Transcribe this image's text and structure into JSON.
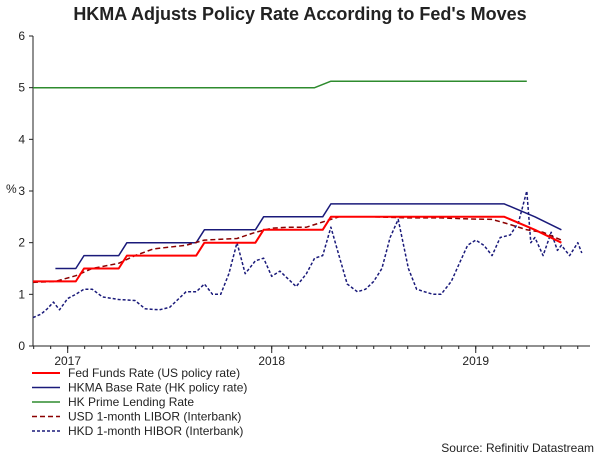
{
  "chart_data": {
    "type": "line",
    "title": "HKMA Adjusts Policy Rate According to Fed's Moves",
    "ylabel": "%",
    "xlabel": "",
    "ylim": [
      0,
      6
    ],
    "xlim": [
      2016.83,
      2019.56
    ],
    "y_ticks": [
      0,
      1,
      2,
      3,
      4,
      5,
      6
    ],
    "x_ticks": [
      {
        "label": "2017",
        "x": 2017.0
      },
      {
        "label": "2018",
        "x": 2018.0
      },
      {
        "label": "2019",
        "x": 2019.0
      }
    ],
    "grid": false,
    "legend_position": "bottom-left",
    "series": [
      {
        "name": "Fed Funds Rate (US policy rate)",
        "color": "#ff0000",
        "style": "solid",
        "width": 2,
        "points": [
          [
            2016.83,
            1.25
          ],
          [
            2017.04,
            1.25
          ],
          [
            2017.08,
            1.5
          ],
          [
            2017.25,
            1.5
          ],
          [
            2017.29,
            1.75
          ],
          [
            2017.63,
            1.75
          ],
          [
            2017.67,
            2.0
          ],
          [
            2017.92,
            2.0
          ],
          [
            2017.96,
            2.25
          ],
          [
            2018.25,
            2.25
          ],
          [
            2018.29,
            2.5
          ],
          [
            2018.81,
            2.5
          ],
          [
            2018.96,
            2.5
          ],
          [
            2019.14,
            2.5
          ],
          [
            2019.29,
            2.25
          ],
          [
            2019.42,
            2.0
          ]
        ]
      },
      {
        "name": "HKMA Base Rate (HK policy rate)",
        "color": "#1a1a7a",
        "style": "solid",
        "width": 1.5,
        "points": [
          [
            2016.94,
            1.5
          ],
          [
            2017.04,
            1.5
          ],
          [
            2017.08,
            1.75
          ],
          [
            2017.25,
            1.75
          ],
          [
            2017.29,
            2.0
          ],
          [
            2017.63,
            2.0
          ],
          [
            2017.67,
            2.25
          ],
          [
            2017.92,
            2.25
          ],
          [
            2017.96,
            2.5
          ],
          [
            2018.25,
            2.5
          ],
          [
            2018.29,
            2.75
          ],
          [
            2018.81,
            2.75
          ],
          [
            2018.96,
            2.75
          ],
          [
            2019.14,
            2.75
          ],
          [
            2019.29,
            2.5
          ],
          [
            2019.42,
            2.25
          ]
        ]
      },
      {
        "name": "HK Prime Lending Rate",
        "color": "#2e8b2e",
        "style": "solid",
        "width": 1.5,
        "points": [
          [
            2016.83,
            5.0
          ],
          [
            2018.21,
            5.0
          ],
          [
            2018.29,
            5.125
          ],
          [
            2019.25,
            5.125
          ]
        ]
      },
      {
        "name": "USD 1-month LIBOR (Interbank)",
        "color": "#8b0000",
        "style": "dashed",
        "width": 1.5,
        "points": [
          [
            2016.83,
            1.23
          ],
          [
            2016.94,
            1.25
          ],
          [
            2017.04,
            1.36
          ],
          [
            2017.12,
            1.5
          ],
          [
            2017.25,
            1.6
          ],
          [
            2017.33,
            1.75
          ],
          [
            2017.42,
            1.88
          ],
          [
            2017.58,
            1.95
          ],
          [
            2017.67,
            2.05
          ],
          [
            2017.83,
            2.08
          ],
          [
            2017.92,
            2.2
          ],
          [
            2018.0,
            2.28
          ],
          [
            2018.08,
            2.3
          ],
          [
            2018.17,
            2.3
          ],
          [
            2018.25,
            2.4
          ],
          [
            2018.33,
            2.5
          ],
          [
            2018.5,
            2.5
          ],
          [
            2018.67,
            2.48
          ],
          [
            2018.83,
            2.48
          ],
          [
            2018.96,
            2.46
          ],
          [
            2019.08,
            2.45
          ],
          [
            2019.17,
            2.35
          ],
          [
            2019.25,
            2.25
          ],
          [
            2019.33,
            2.2
          ],
          [
            2019.42,
            2.05
          ]
        ]
      },
      {
        "name": "HKD 1-month HIBOR (Interbank)",
        "color": "#1a1a7a",
        "style": "dotted",
        "width": 1.5,
        "points": [
          [
            2016.83,
            0.55
          ],
          [
            2016.87,
            0.62
          ],
          [
            2016.9,
            0.72
          ],
          [
            2016.93,
            0.85
          ],
          [
            2016.96,
            0.7
          ],
          [
            2017.0,
            0.92
          ],
          [
            2017.04,
            1.0
          ],
          [
            2017.08,
            1.1
          ],
          [
            2017.12,
            1.1
          ],
          [
            2017.17,
            0.95
          ],
          [
            2017.25,
            0.9
          ],
          [
            2017.33,
            0.88
          ],
          [
            2017.38,
            0.72
          ],
          [
            2017.45,
            0.7
          ],
          [
            2017.5,
            0.75
          ],
          [
            2017.54,
            0.9
          ],
          [
            2017.58,
            1.05
          ],
          [
            2017.63,
            1.05
          ],
          [
            2017.67,
            1.2
          ],
          [
            2017.71,
            1.0
          ],
          [
            2017.75,
            1.0
          ],
          [
            2017.79,
            1.4
          ],
          [
            2017.83,
            2.0
          ],
          [
            2017.87,
            1.4
          ],
          [
            2017.92,
            1.65
          ],
          [
            2017.96,
            1.7
          ],
          [
            2018.0,
            1.35
          ],
          [
            2018.04,
            1.45
          ],
          [
            2018.08,
            1.3
          ],
          [
            2018.12,
            1.15
          ],
          [
            2018.17,
            1.4
          ],
          [
            2018.21,
            1.7
          ],
          [
            2018.25,
            1.75
          ],
          [
            2018.29,
            2.3
          ],
          [
            2018.33,
            1.75
          ],
          [
            2018.37,
            1.2
          ],
          [
            2018.42,
            1.05
          ],
          [
            2018.46,
            1.1
          ],
          [
            2018.5,
            1.25
          ],
          [
            2018.54,
            1.5
          ],
          [
            2018.58,
            2.1
          ],
          [
            2018.62,
            2.45
          ],
          [
            2018.67,
            1.5
          ],
          [
            2018.71,
            1.1
          ],
          [
            2018.75,
            1.05
          ],
          [
            2018.79,
            1.0
          ],
          [
            2018.83,
            1.0
          ],
          [
            2018.88,
            1.25
          ],
          [
            2018.92,
            1.6
          ],
          [
            2018.96,
            1.95
          ],
          [
            2019.0,
            2.05
          ],
          [
            2019.04,
            1.95
          ],
          [
            2019.08,
            1.75
          ],
          [
            2019.12,
            2.1
          ],
          [
            2019.17,
            2.15
          ],
          [
            2019.21,
            2.4
          ],
          [
            2019.25,
            3.0
          ],
          [
            2019.27,
            2.0
          ],
          [
            2019.29,
            2.1
          ],
          [
            2019.33,
            1.75
          ],
          [
            2019.37,
            2.2
          ],
          [
            2019.4,
            1.85
          ],
          [
            2019.42,
            1.95
          ],
          [
            2019.46,
            1.75
          ],
          [
            2019.5,
            2.0
          ],
          [
            2019.52,
            1.8
          ]
        ]
      }
    ],
    "source": "Source: Refinitiv Datastream"
  }
}
